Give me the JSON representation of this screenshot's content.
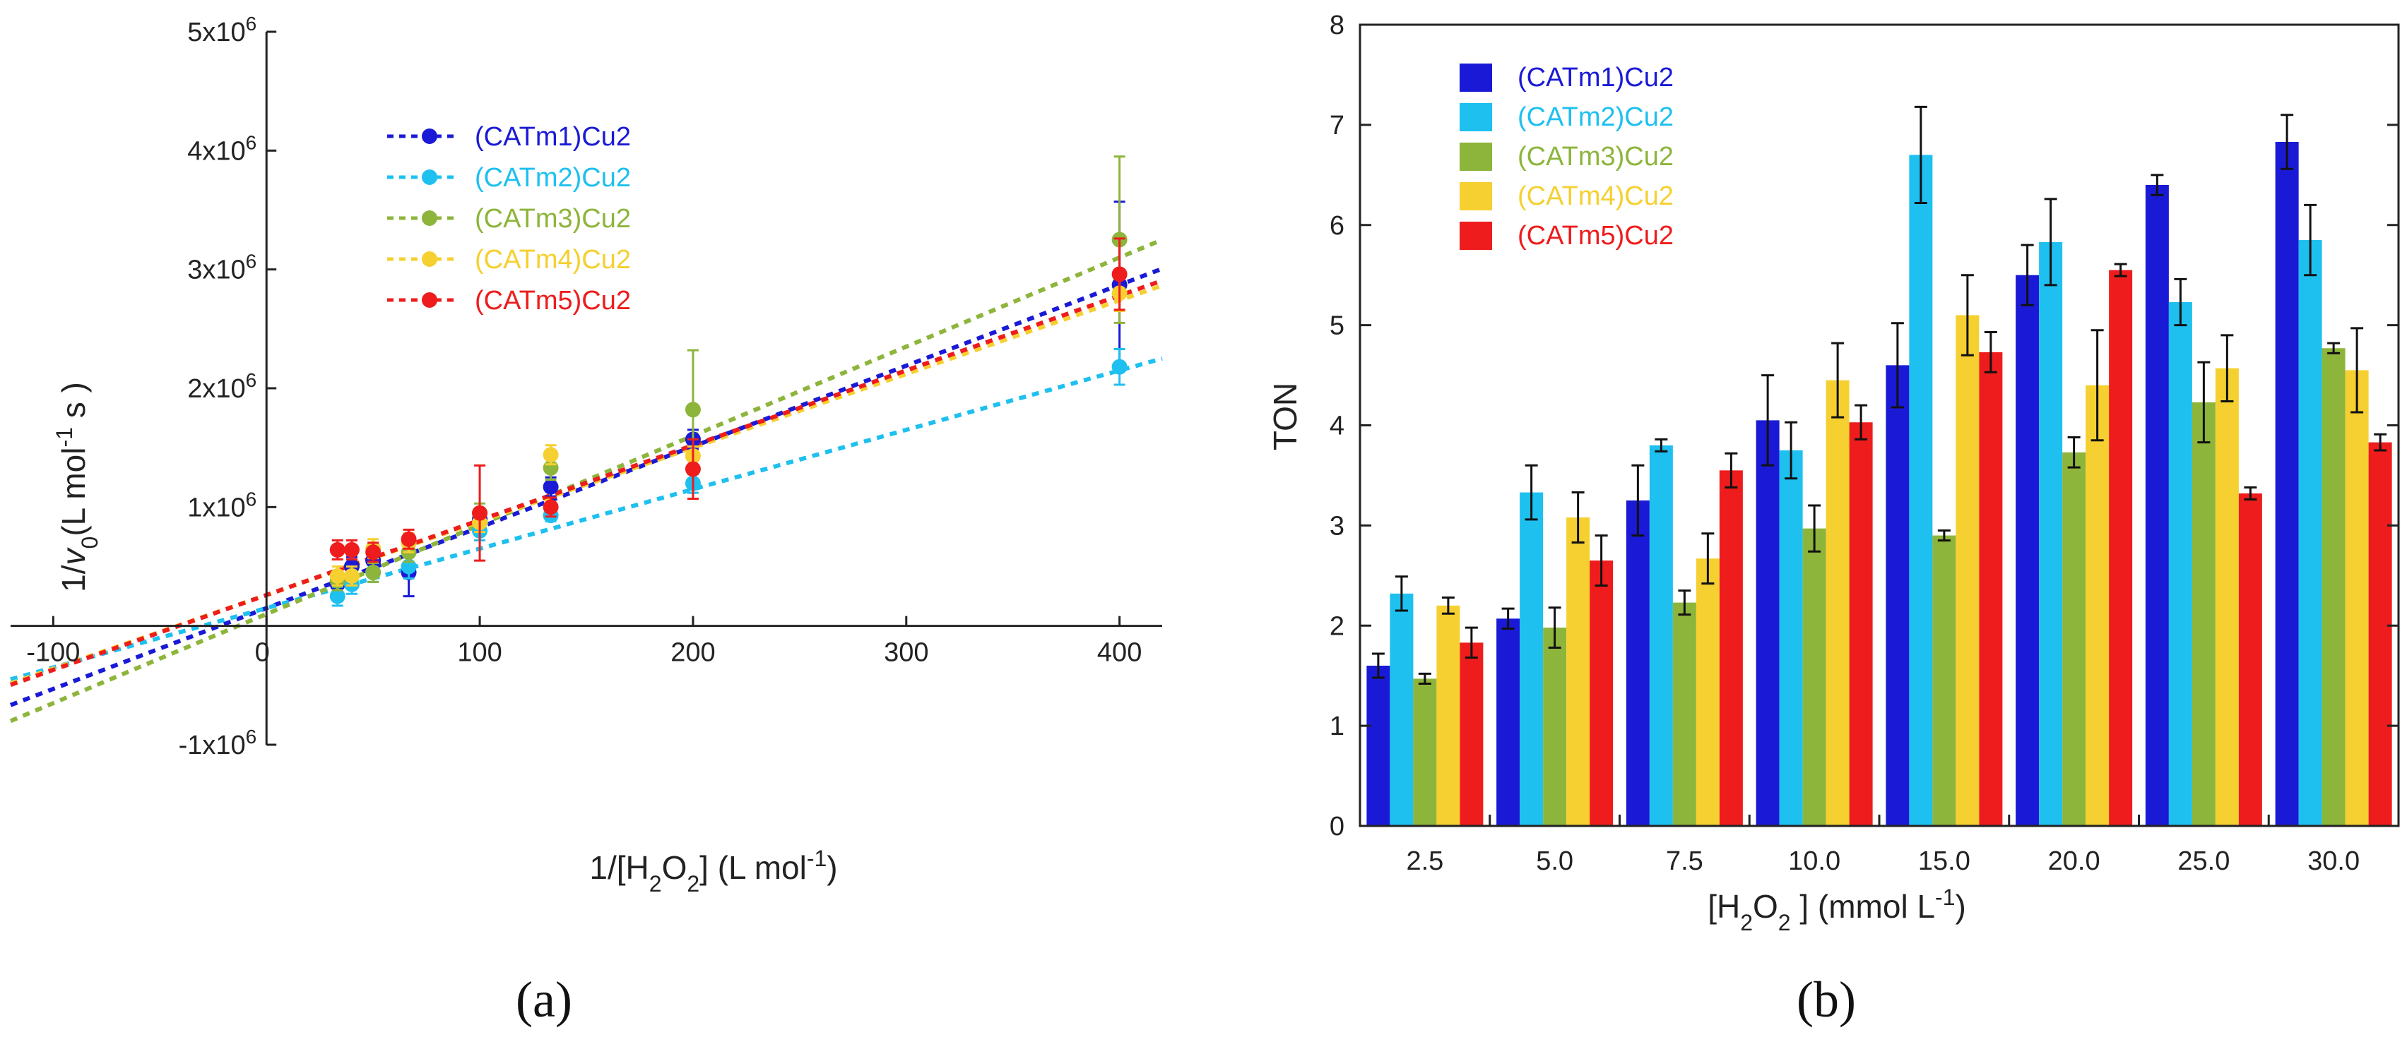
{
  "figure": {
    "panel_a_label": "(a)",
    "panel_b_label": "(b)"
  },
  "chart_data": [
    {
      "id": "a",
      "type": "scatter",
      "title": "",
      "xlabel": "1/[H₂O₂] (L mol⁻¹)",
      "ylabel": "1/v₀(L mol⁻¹ s)",
      "xlim": [
        -120,
        420
      ],
      "ylim": [
        -1000000,
        5000000
      ],
      "xticks": [
        -100,
        0,
        100,
        200,
        300,
        400
      ],
      "xtick_labels": [
        "-100",
        "0",
        "100",
        "200",
        "300",
        "400"
      ],
      "yticks": [
        -1000000,
        1000000,
        2000000,
        3000000,
        4000000,
        5000000
      ],
      "ytick_labels": [
        "-1x10⁶",
        "1x10⁶",
        "2x10⁶",
        "3x10⁶",
        "4x10⁶",
        "5x10⁶"
      ],
      "legend_position": "top-center",
      "x": [
        33.3,
        40,
        50,
        66.7,
        100,
        133.3,
        200,
        400
      ],
      "series": [
        {
          "name": "(CATm1)Cu2",
          "color": "#1a1ad6",
          "values": [
            350000,
            500000,
            550000,
            450000,
            900000,
            1170000,
            1570000,
            2870000
          ],
          "errors": [
            80000,
            80000,
            80000,
            200000,
            80000,
            80000,
            80000,
            700000
          ],
          "fit": {
            "slope": 6800,
            "intercept": 150000
          }
        },
        {
          "name": "(CATm2)Cu2",
          "color": "#1ec0f0",
          "values": [
            250000,
            350000,
            450000,
            500000,
            800000,
            930000,
            1200000,
            2180000
          ],
          "errors": [
            80000,
            80000,
            80000,
            100000,
            80000,
            50000,
            80000,
            150000
          ],
          "fit": {
            "slope": 5000,
            "intercept": 150000
          }
        },
        {
          "name": "(CATm3)Cu2",
          "color": "#8db53b",
          "values": [
            380000,
            420000,
            450000,
            620000,
            950000,
            1330000,
            1820000,
            3250000
          ],
          "errors": [
            80000,
            80000,
            80000,
            80000,
            80000,
            100000,
            500000,
            700000
          ],
          "fit": {
            "slope": 7500,
            "intercept": 100000
          }
        },
        {
          "name": "(CATm4)Cu2",
          "color": "#f5d030",
          "values": [
            420000,
            420000,
            650000,
            700000,
            870000,
            1440000,
            1430000,
            2800000
          ],
          "errors": [
            80000,
            80000,
            80000,
            80000,
            80000,
            80000,
            80000,
            150000
          ],
          "fit": {
            "slope": 6200,
            "intercept": 260000
          }
        },
        {
          "name": "(CATm5)Cu2",
          "color": "#ee1c1c",
          "values": [
            640000,
            640000,
            620000,
            730000,
            950000,
            1000000,
            1320000,
            2960000
          ],
          "errors": [
            80000,
            80000,
            80000,
            80000,
            400000,
            80000,
            250000,
            300000
          ],
          "fit": {
            "slope": 6300,
            "intercept": 260000
          }
        }
      ]
    },
    {
      "id": "b",
      "type": "bar",
      "title": "",
      "xlabel": "[H₂O₂ ] (mmol  L⁻¹)",
      "ylabel": "TON",
      "ylim": [
        0,
        8
      ],
      "yticks": [
        0,
        1,
        2,
        3,
        4,
        5,
        6,
        7,
        8
      ],
      "categories": [
        "2.5",
        "5.0",
        "7.5",
        "10.0",
        "15.0",
        "20.0",
        "25.0",
        "30.0"
      ],
      "legend_position": "top-left",
      "series": [
        {
          "name": "(CATm1)Cu2",
          "color": "#1a1ad6",
          "values": [
            1.6,
            2.07,
            3.25,
            4.05,
            4.6,
            5.5,
            6.4,
            6.83
          ],
          "errors": [
            0.12,
            0.1,
            0.35,
            0.45,
            0.42,
            0.3,
            0.1,
            0.27
          ]
        },
        {
          "name": "(CATm2)Cu2",
          "color": "#1ec0f0",
          "values": [
            2.32,
            3.33,
            3.8,
            3.75,
            6.7,
            5.83,
            5.23,
            5.85
          ],
          "errors": [
            0.17,
            0.27,
            0.06,
            0.28,
            0.48,
            0.43,
            0.23,
            0.35
          ]
        },
        {
          "name": "(CATm3)Cu2",
          "color": "#8db53b",
          "values": [
            1.47,
            1.98,
            2.23,
            2.97,
            2.9,
            3.73,
            4.23,
            4.77
          ],
          "errors": [
            0.05,
            0.2,
            0.12,
            0.23,
            0.05,
            0.15,
            0.4,
            0.05
          ]
        },
        {
          "name": "(CATm4)Cu2",
          "color": "#f5d030",
          "values": [
            2.2,
            3.08,
            2.67,
            4.45,
            5.1,
            4.4,
            4.57,
            4.55
          ],
          "errors": [
            0.08,
            0.25,
            0.25,
            0.37,
            0.4,
            0.55,
            0.33,
            0.42
          ]
        },
        {
          "name": "(CATm5)Cu2",
          "color": "#ee1c1c",
          "values": [
            1.83,
            2.65,
            3.55,
            4.03,
            4.73,
            5.55,
            3.32,
            3.83
          ],
          "errors": [
            0.15,
            0.25,
            0.17,
            0.17,
            0.2,
            0.06,
            0.06,
            0.08
          ]
        }
      ]
    }
  ]
}
